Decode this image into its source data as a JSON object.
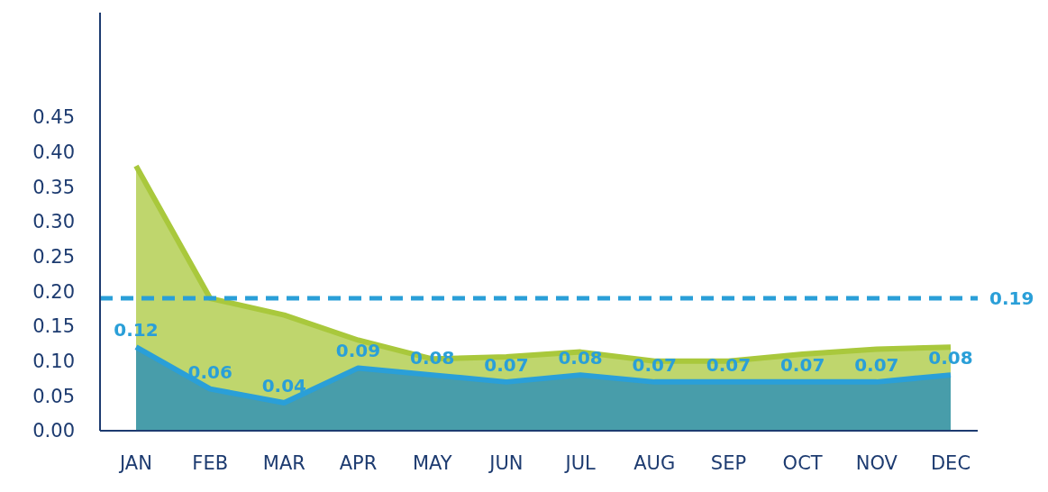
{
  "chart_data": {
    "type": "area",
    "categories": [
      "JAN",
      "FEB",
      "MAR",
      "APR",
      "MAY",
      "JUN",
      "JUL",
      "AUG",
      "SEP",
      "OCT",
      "NOV",
      "DEC"
    ],
    "series": [
      {
        "color": "#a9c83c",
        "values": [
          0.38,
          0.19,
          0.166,
          0.13,
          0.103,
          0.106,
          0.113,
          0.1,
          0.1,
          0.11,
          0.117,
          0.12
        ]
      },
      {
        "color": "#2a9fd8",
        "values": [
          0.12,
          0.06,
          0.04,
          0.09,
          0.08,
          0.07,
          0.08,
          0.07,
          0.07,
          0.07,
          0.07,
          0.08
        ],
        "value_labels": [
          "0.12",
          "0.06",
          "0.04",
          "0.09",
          "0.08",
          "0.07",
          "0.08",
          "0.07",
          "0.07",
          "0.07",
          "0.07",
          "0.08"
        ]
      }
    ],
    "ylim": [
      0,
      0.6
    ],
    "yticks": [
      {
        "value": 0,
        "label": "0.00"
      },
      {
        "value": 0.05,
        "label": "0.05"
      },
      {
        "value": 0.1,
        "label": "0.10"
      },
      {
        "value": 0.15,
        "label": "0.15"
      },
      {
        "value": 0.2,
        "label": "0.20"
      },
      {
        "value": 0.25,
        "label": "0.25"
      },
      {
        "value": 0.3,
        "label": "0.30"
      },
      {
        "value": 0.35,
        "label": "0.35"
      },
      {
        "value": 0.4,
        "label": "0.40"
      },
      {
        "value": 0.45,
        "label": "0.45"
      }
    ],
    "ref_lines": [
      {
        "axis": "y",
        "value": 0.19,
        "label": "0.19",
        "color": "#2a9fd8",
        "line_style": "dashed"
      }
    ],
    "grid": false,
    "legend": false,
    "marker": "none",
    "line_style": "solid"
  }
}
